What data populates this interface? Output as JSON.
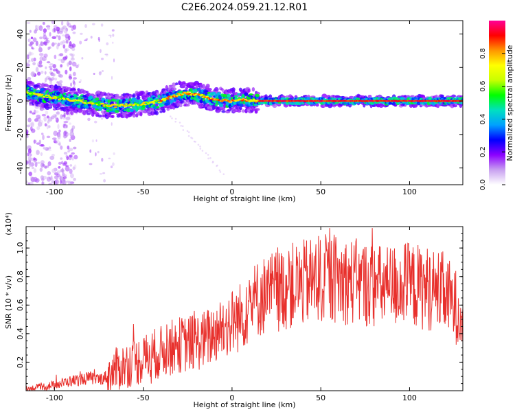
{
  "title": "C2E6.2024.059.21.12.R01",
  "chart_data": [
    {
      "type": "heatmap",
      "xlabel": "Height of straight line (km)",
      "ylabel": "Frequency (Hz)",
      "xlim": [
        -116,
        130
      ],
      "ylim": [
        -50,
        48
      ],
      "xticks": [
        -100,
        -50,
        0,
        50,
        100
      ],
      "yticks": [
        -40,
        -20,
        0,
        20,
        40
      ],
      "grid": false,
      "ridge": [
        [
          -115,
          5
        ],
        [
          -105,
          3
        ],
        [
          -95,
          1
        ],
        [
          -85,
          0
        ],
        [
          -75,
          -2
        ],
        [
          -65,
          -3
        ],
        [
          -55,
          -2
        ],
        [
          -45,
          -1
        ],
        [
          -40,
          0
        ],
        [
          -35,
          2
        ],
        [
          -30,
          4
        ],
        [
          -25,
          4.5
        ],
        [
          -20,
          4
        ],
        [
          -15,
          2.5
        ],
        [
          -10,
          1
        ],
        [
          -5,
          0.5
        ],
        [
          0,
          0
        ],
        [
          5,
          1
        ],
        [
          10,
          0.5
        ],
        [
          15,
          0
        ],
        [
          130,
          0
        ]
      ],
      "colorbar": {
        "label": "Normalized spectral amplitude",
        "range": [
          0,
          1
        ],
        "ticks": [
          0.0,
          0.2,
          0.4,
          0.6,
          0.8
        ],
        "colors": [
          "#ffffff",
          "#c8a0f0",
          "#8c00ff",
          "#0000ff",
          "#00a0ff",
          "#00e0c0",
          "#00ff00",
          "#c8ff00",
          "#ffff00",
          "#ff9600",
          "#ff0000",
          "#ff0096"
        ]
      }
    },
    {
      "type": "line",
      "xlabel": "Height of straight line (km)",
      "ylabel": "SNR (10 * v/v)",
      "multiplier": "(x10⁴)",
      "xlim": [
        -116,
        130
      ],
      "ylim": [
        0,
        1.15
      ],
      "xticks": [
        -100,
        -50,
        0,
        50,
        100
      ],
      "yticks": [
        0.2,
        0.4,
        0.6,
        0.8,
        1.0
      ],
      "grid": false,
      "series": [
        {
          "color": "#e8302c",
          "x": [
            -116,
            -110,
            -100,
            -90,
            -80,
            -75,
            -70,
            -65,
            -60,
            -55,
            -50,
            -45,
            -40,
            -35,
            -30,
            -25,
            -20,
            -15,
            -10,
            -5,
            0,
            5,
            10,
            15,
            20,
            25,
            30,
            35,
            40,
            45,
            50,
            55,
            60,
            65,
            70,
            75,
            80,
            85,
            90,
            95,
            100,
            105,
            110,
            115,
            120,
            125,
            130
          ],
          "y": [
            0.01,
            0.02,
            0.04,
            0.07,
            0.09,
            0.08,
            0.1,
            0.15,
            0.18,
            0.2,
            0.22,
            0.25,
            0.27,
            0.3,
            0.32,
            0.33,
            0.34,
            0.36,
            0.4,
            0.45,
            0.48,
            0.52,
            0.6,
            0.65,
            0.68,
            0.7,
            0.72,
            0.74,
            0.75,
            0.77,
            0.78,
            0.79,
            0.78,
            0.77,
            0.76,
            0.75,
            0.74,
            0.72,
            0.73,
            0.75,
            0.74,
            0.73,
            0.72,
            0.7,
            0.68,
            0.6,
            0.55
          ]
        }
      ]
    }
  ]
}
